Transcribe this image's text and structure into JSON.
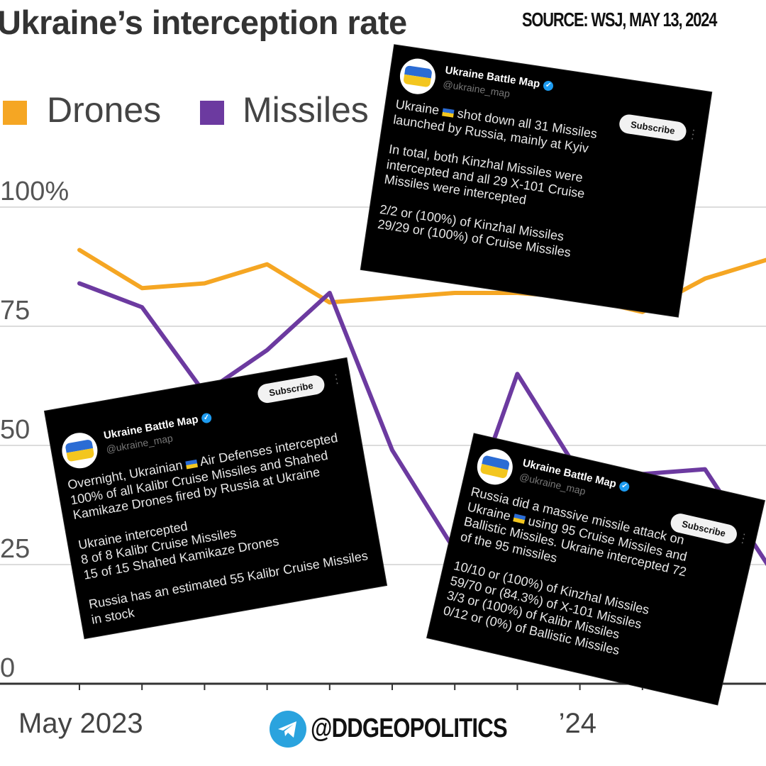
{
  "header": {
    "title": "Ukraine’s interception rate",
    "source": "SOURCE: WSJ, MAY 13, 2024"
  },
  "legend": [
    {
      "label": "Drones",
      "color": "#f5a623"
    },
    {
      "label": "Missiles",
      "color": "#6c3aa0"
    }
  ],
  "chart_data": {
    "type": "line",
    "x": [
      "2023-05",
      "2023-06",
      "2023-07",
      "2023-08",
      "2023-09",
      "2023-10",
      "2023-11",
      "2023-12",
      "2024-01",
      "2024-02",
      "2024-03",
      "2024-04"
    ],
    "series": [
      {
        "name": "Drones",
        "color": "#f5a623",
        "values": [
          91,
          83,
          84,
          88,
          80,
          81,
          82,
          82,
          81,
          78,
          85,
          89
        ]
      },
      {
        "name": "Missiles",
        "color": "#6c3aa0",
        "values": [
          84,
          79,
          61,
          70,
          82,
          49,
          28,
          65,
          44,
          44,
          45,
          25
        ]
      }
    ],
    "ylim": [
      0,
      100
    ],
    "yticks": [
      0,
      25,
      50,
      75,
      100
    ],
    "ytick_labels": [
      "0",
      "25",
      "50",
      "75",
      "100%"
    ],
    "xtick_labels": [
      {
        "x": "2023-05",
        "label": "May 2023"
      },
      {
        "x": "2024-01",
        "label": "’24"
      }
    ],
    "grid": true,
    "legend_position": "top-left"
  },
  "tweets": [
    {
      "name": "Ukraine Battle Map",
      "handle": "@ukraine_map",
      "subscribe": "Subscribe",
      "paragraphs": [
        [
          "Ukraine ",
          "flag",
          " shot down all 31 Missiles launched by Russia, mainly at Kyiv"
        ],
        [
          "In total, both Kinzhal Missiles were intercepted and all 29 X-101 Cruise Missiles were intercepted"
        ],
        [
          "2/2 or (100%) of Kinzhal Missiles",
          "br",
          "29/29 or (100%) of Cruise Missiles"
        ]
      ]
    },
    {
      "name": "Ukraine Battle Map",
      "handle": "@ukraine_map",
      "subscribe": "Subscribe",
      "paragraphs": [
        [
          "Overnight, Ukrainian ",
          "flag",
          " Air Defenses intercepted 100% of all Kalibr Cruise Missiles and Shahed Kamikaze Drones fired by Russia at Ukraine"
        ],
        [
          "Ukraine intercepted",
          "br",
          "8 of 8 Kalibr Cruise Missiles",
          "br",
          "15 of 15 Shahed Kamikaze Drones"
        ],
        [
          "Russia has an estimated 55 Kalibr Cruise Missiles in stock"
        ]
      ]
    },
    {
      "name": "Ukraine Battle Map",
      "handle": "@ukraine_map",
      "subscribe": "Subscribe",
      "paragraphs": [
        [
          "Russia did a massive missile attack on Ukraine ",
          "flag",
          " using 95 Cruise Missiles and Ballistic Missiles. Ukraine intercepted 72 of the 95 missiles"
        ],
        [
          "10/10 or (100%) of Kinzhal Missiles",
          "br",
          "59/70 or (84.3%) of X-101 Missiles",
          "br",
          "3/3 or (100%) of Kalibr Missiles",
          "br",
          "0/12 or (0%) of Ballistic Missiles"
        ]
      ]
    }
  ],
  "footer": {
    "handle": "@DDGEOPOLITICS",
    "icon": "telegram-icon"
  }
}
